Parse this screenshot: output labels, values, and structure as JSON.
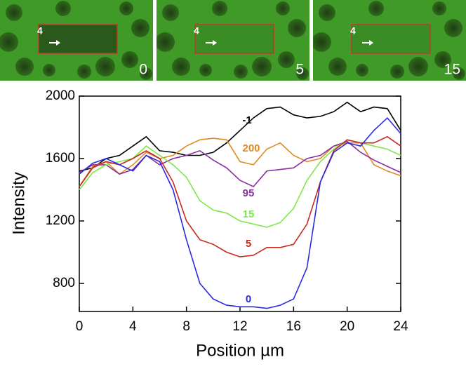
{
  "chart_data": {
    "type": "line",
    "panels": [
      {
        "label": "0",
        "roi_label": "4"
      },
      {
        "label": "5",
        "roi_label": "4"
      },
      {
        "label": "15",
        "roi_label": "4"
      }
    ],
    "x_label": "Position µm",
    "y_label": "Intensity",
    "x": [
      0,
      1,
      2,
      3,
      4,
      5,
      6,
      7,
      8,
      9,
      10,
      11,
      12,
      13,
      14,
      15,
      16,
      17,
      18,
      19,
      20,
      21,
      22,
      23,
      24
    ],
    "xlim": [
      0,
      24
    ],
    "xticks": [
      0,
      4,
      8,
      12,
      16,
      20,
      24
    ],
    "ylim": [
      620,
      2000
    ],
    "yticks": [
      800,
      1200,
      1600,
      2000
    ],
    "series": [
      {
        "name": "-1",
        "color": "#000000",
        "values": [
          1520,
          1540,
          1600,
          1620,
          1680,
          1740,
          1650,
          1640,
          1620,
          1620,
          1640,
          1700,
          1780,
          1860,
          1920,
          1930,
          1880,
          1860,
          1870,
          1900,
          1960,
          1900,
          1930,
          1920,
          1780
        ]
      },
      {
        "name": "200",
        "color": "#e08a20",
        "values": [
          1420,
          1550,
          1580,
          1500,
          1560,
          1640,
          1600,
          1620,
          1680,
          1720,
          1730,
          1720,
          1580,
          1560,
          1660,
          1700,
          1620,
          1580,
          1600,
          1680,
          1700,
          1700,
          1560,
          1520,
          1490
        ]
      },
      {
        "name": "95",
        "color": "#8b2fa0",
        "values": [
          1510,
          1560,
          1560,
          1500,
          1530,
          1620,
          1560,
          1600,
          1620,
          1650,
          1590,
          1540,
          1460,
          1420,
          1520,
          1530,
          1540,
          1600,
          1620,
          1680,
          1710,
          1640,
          1590,
          1550,
          1510
        ]
      },
      {
        "name": "15",
        "color": "#7de84a",
        "values": [
          1400,
          1510,
          1560,
          1580,
          1600,
          1680,
          1620,
          1560,
          1480,
          1330,
          1270,
          1250,
          1200,
          1180,
          1160,
          1190,
          1280,
          1460,
          1580,
          1660,
          1720,
          1700,
          1680,
          1660,
          1620
        ]
      },
      {
        "name": "5",
        "color": "#c8281e",
        "values": [
          1420,
          1540,
          1580,
          1560,
          1600,
          1650,
          1600,
          1450,
          1200,
          1080,
          1050,
          1000,
          970,
          980,
          1030,
          1030,
          1050,
          1180,
          1450,
          1650,
          1720,
          1700,
          1700,
          1740,
          1680
        ]
      },
      {
        "name": "0",
        "color": "#2a2ae0",
        "values": [
          1500,
          1570,
          1600,
          1560,
          1520,
          1620,
          1580,
          1400,
          1080,
          800,
          700,
          660,
          650,
          650,
          640,
          660,
          700,
          900,
          1450,
          1640,
          1700,
          1680,
          1780,
          1860,
          1760
        ]
      }
    ]
  }
}
